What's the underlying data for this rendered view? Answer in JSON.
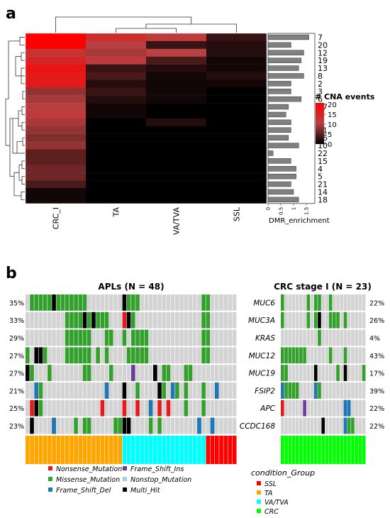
{
  "panel_a": {
    "label": "a",
    "columns": [
      "CRC_I",
      "TA",
      "VA/TVA",
      "SSL"
    ],
    "rows": [
      "7",
      "20",
      "12",
      "19",
      "13",
      "8",
      "2",
      "3",
      "6",
      "17",
      "9",
      "1",
      "11",
      "16",
      "10",
      "22",
      "15",
      "4",
      "5",
      "21",
      "14",
      "18"
    ],
    "cna_matrix": [
      [
        20,
        13,
        11,
        3
      ],
      [
        20,
        10,
        3,
        2
      ],
      [
        12,
        9,
        10,
        2
      ],
      [
        14,
        11,
        4,
        1
      ],
      [
        17,
        3,
        2,
        1
      ],
      [
        16,
        4,
        1,
        2
      ],
      [
        16,
        2,
        1,
        1
      ],
      [
        8,
        3,
        1,
        0
      ],
      [
        9,
        2,
        1,
        0
      ],
      [
        10,
        1,
        0,
        0
      ],
      [
        11,
        1,
        0,
        0
      ],
      [
        9,
        0,
        2,
        0
      ],
      [
        8,
        0,
        0,
        0
      ],
      [
        7,
        0,
        0,
        0
      ],
      [
        8,
        0,
        0,
        0
      ],
      [
        5,
        0,
        0,
        0
      ],
      [
        5,
        0,
        0,
        0
      ],
      [
        6,
        0,
        0,
        0
      ],
      [
        6,
        0,
        0,
        0
      ],
      [
        4,
        0,
        0,
        0
      ],
      [
        1,
        0,
        0,
        0
      ],
      [
        1,
        0,
        0,
        0
      ]
    ],
    "dmr_enrichment": [
      1.6,
      0.9,
      1.4,
      1.3,
      1.2,
      1.4,
      0.9,
      0.9,
      1.3,
      0.8,
      0.7,
      0.9,
      0.9,
      0.8,
      1.2,
      0.2,
      0.9,
      1.1,
      1.1,
      0.9,
      1.0,
      1.2
    ],
    "dmr_axis": {
      "label": "DMR_enrichment",
      "ticks": [
        "0",
        "0.5",
        "1",
        "1.5"
      ],
      "range": [
        0,
        2
      ]
    },
    "legend": {
      "title": "# CNA events",
      "ticks": [
        "20",
        "15",
        "10",
        "5",
        "0"
      ]
    },
    "colors": {
      "high": "#ff0000",
      "mid": "#b84040",
      "low": "#000000",
      "bar": "#808080"
    }
  },
  "panel_b": {
    "label": "b",
    "apl_title": "APLs (N = 48)",
    "crc_title": "CRC stage I (N = 23)",
    "genes": [
      "MUC6",
      "MUC3A",
      "KRAS",
      "MUC12",
      "MUC19",
      "FSIP2",
      "APC",
      "CCDC168"
    ],
    "apl_pct": [
      "35%",
      "33%",
      "29%",
      "27%",
      "27%",
      "21%",
      "25%",
      "23%"
    ],
    "crc_pct": [
      "22%",
      "26%",
      "4%",
      "43%",
      "17%",
      "39%",
      "22%",
      "22%"
    ],
    "apl_n": 48,
    "crc_n": 23,
    "apl_group_counts": {
      "TA": 22,
      "VA/TVA": 19,
      "SSL": 7
    },
    "apl_cells": [
      {
        "m": [
          1,
          2,
          3,
          4,
          5,
          7,
          8,
          9,
          10,
          11,
          12,
          13,
          23,
          24,
          25,
          40,
          41
        ],
        "k": [
          6,
          22
        ],
        "f": [],
        "s": [],
        "n": []
      },
      {
        "m": [
          9,
          10,
          11,
          12,
          14,
          16,
          17,
          18,
          22,
          24,
          40,
          41
        ],
        "k": [
          13,
          15,
          23
        ],
        "f": [],
        "s": [],
        "n": [
          22
        ]
      },
      {
        "m": [
          9,
          10,
          11,
          12,
          13,
          14,
          18,
          19,
          22,
          24,
          25,
          26,
          27,
          40,
          41
        ],
        "k": [],
        "f": [],
        "s": [],
        "n": []
      },
      {
        "m": [
          0,
          3,
          4,
          9,
          10,
          11,
          12,
          13,
          14,
          16,
          18,
          23,
          24,
          25,
          26,
          27,
          40,
          41
        ],
        "k": [
          2,
          3
        ],
        "f": [],
        "s": [],
        "n": []
      },
      {
        "m": [
          1,
          5,
          13,
          14,
          19,
          31,
          32,
          36,
          37
        ],
        "k": [
          0,
          29
        ],
        "f": [],
        "s": [
          {
            "c": 24,
            "t": "ins"
          }
        ],
        "n": [],
        "o": [
          29
        ]
      },
      {
        "m": [
          3,
          25,
          31,
          34,
          36,
          40
        ],
        "k": [
          22,
          30
        ],
        "f": [
          2,
          18,
          33,
          43
        ],
        "s": [],
        "n": []
      },
      {
        "m": [
          3,
          22,
          36,
          40
        ],
        "k": [
          2
        ],
        "f": [
          28
        ],
        "s": [],
        "n": [
          1,
          17,
          22,
          25,
          28,
          30,
          32
        ]
      },
      {
        "m": [
          6,
          11,
          13,
          14,
          20,
          21,
          28,
          30
        ],
        "k": [
          1,
          22,
          23
        ],
        "f": [
          6,
          39,
          42
        ],
        "s": [],
        "n": []
      }
    ],
    "crc_cells": [
      {
        "m": [
          0,
          7,
          9,
          10,
          13
        ],
        "k": [],
        "f": [],
        "s": [],
        "n": []
      },
      {
        "m": [
          0,
          7,
          9,
          13,
          14,
          15,
          17
        ],
        "k": [
          10
        ],
        "f": [],
        "s": [],
        "n": []
      },
      {
        "m": [
          10
        ],
        "k": [],
        "f": [],
        "s": [],
        "n": []
      },
      {
        "m": [
          0,
          1,
          2,
          3,
          4,
          5,
          6,
          13,
          17
        ],
        "k": [],
        "f": [],
        "s": [],
        "n": []
      },
      {
        "m": [
          0,
          1,
          15,
          22
        ],
        "k": [
          9,
          17
        ],
        "f": [],
        "s": [],
        "n": []
      },
      {
        "m": [
          1,
          2,
          3,
          4,
          10
        ],
        "k": [
          9
        ],
        "f": [
          0,
          9
        ],
        "s": [],
        "n": []
      },
      {
        "m": [],
        "k": [],
        "f": [
          17,
          18
        ],
        "s": [
          {
            "c": 6,
            "t": "ins"
          }
        ],
        "n": [
          0
        ]
      },
      {
        "m": [
          18,
          19
        ],
        "k": [
          11
        ],
        "f": [
          17
        ],
        "s": [],
        "n": []
      }
    ],
    "mutation_legend": [
      {
        "label": "Nonsense_Mutation",
        "color": "#e41a1c"
      },
      {
        "label": "Missense_Mutation",
        "color": "#33a02c"
      },
      {
        "label": "Frame_Shift_Del",
        "color": "#1f78b4"
      },
      {
        "label": "Frame_Shift_Ins",
        "color": "#6a3d9a"
      },
      {
        "label": "Nonstop_Mutation",
        "color": "#a6cee3"
      },
      {
        "label": "Multi_Hit",
        "color": "#000000"
      }
    ],
    "condition_legend": {
      "title": "condition_Group",
      "items": [
        {
          "label": "SSL",
          "color": "#ff0000"
        },
        {
          "label": "TA",
          "color": "#ffa500"
        },
        {
          "label": "VA/TVA",
          "color": "#00ffff"
        },
        {
          "label": "CRC",
          "color": "#00ff00"
        }
      ]
    },
    "cell_bg": "#d3d3d3"
  }
}
